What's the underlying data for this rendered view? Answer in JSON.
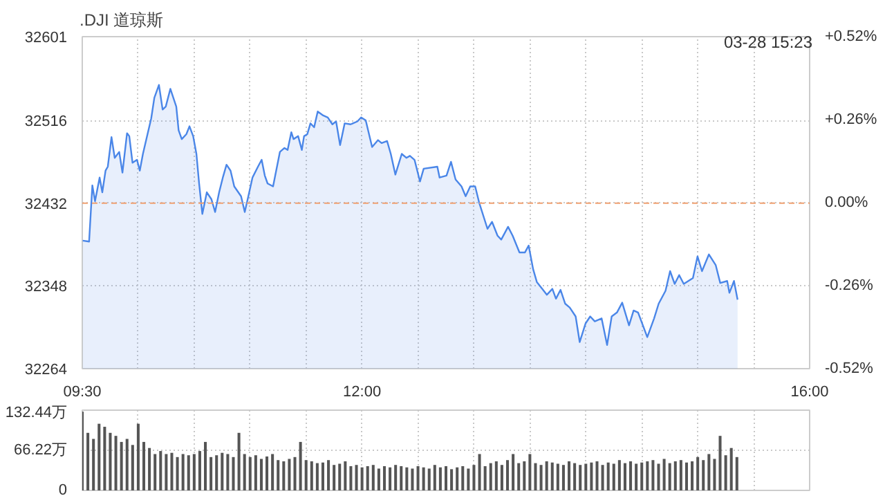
{
  "chart_data": [
    {
      "type": "area",
      "title": ".DJI 道琼斯",
      "annotations": [
        "03-28 15:23"
      ],
      "color": "#4a86e8",
      "grid": true,
      "x": [
        9.504,
        9.561,
        9.59,
        9.614,
        9.655,
        9.679,
        9.708,
        9.728,
        9.761,
        9.79,
        9.83,
        9.859,
        9.9,
        9.92,
        9.949,
        9.989,
        10.014,
        10.042,
        10.083,
        10.116,
        10.144,
        10.185,
        10.218,
        10.246,
        10.287,
        10.34,
        10.361,
        10.389,
        10.43,
        10.458,
        10.491,
        10.52,
        10.544,
        10.573,
        10.613,
        10.654,
        10.687,
        10.723,
        10.756,
        10.789,
        10.825,
        10.858,
        10.919,
        10.952,
        10.984,
        11.021,
        11.07,
        11.103,
        11.131,
        11.156,
        11.205,
        11.266,
        11.307,
        11.335,
        11.368,
        11.388,
        11.429,
        11.462,
        11.482,
        11.511,
        11.539,
        11.572,
        11.604,
        11.653,
        11.694,
        11.735,
        11.768,
        11.804,
        11.845,
        11.898,
        11.959,
        11.992,
        12.033,
        12.09,
        12.143,
        12.175,
        12.224,
        12.257,
        12.298,
        12.355,
        12.396,
        12.428,
        12.469,
        12.518,
        12.551,
        12.673,
        12.693,
        12.755,
        12.795,
        12.836,
        12.889,
        12.926,
        12.967,
        13.011,
        13.048,
        13.121,
        13.162,
        13.211,
        13.244,
        13.305,
        13.346,
        13.407,
        13.456,
        13.489,
        13.529,
        13.562,
        13.611,
        13.652,
        13.701,
        13.733,
        13.774,
        13.815,
        13.856,
        13.909,
        13.945,
        13.998,
        14.039,
        14.08,
        14.141,
        14.19,
        14.231,
        14.278,
        14.325,
        14.386,
        14.427,
        14.467,
        14.549,
        14.61,
        14.651,
        14.712,
        14.753,
        14.794,
        14.834,
        14.875,
        14.957,
        14.998,
        15.038,
        15.1,
        15.161,
        15.201,
        15.263,
        15.283,
        15.324,
        15.356
      ],
      "values": [
        32394,
        32393,
        32450,
        32434,
        32458,
        32443,
        32465,
        32469,
        32499,
        32478,
        32484,
        32463,
        32503,
        32500,
        32473,
        32476,
        32465,
        32482,
        32502,
        32518,
        32539,
        32552,
        32527,
        32530,
        32548,
        32530,
        32506,
        32497,
        32502,
        32510,
        32500,
        32482,
        32452,
        32421,
        32443,
        32436,
        32423,
        32443,
        32458,
        32471,
        32465,
        32449,
        32439,
        32423,
        32439,
        32458,
        32469,
        32476,
        32460,
        32452,
        32449,
        32484,
        32488,
        32486,
        32504,
        32497,
        32500,
        32486,
        32500,
        32502,
        32513,
        32509,
        32525,
        32521,
        32519,
        32512,
        32515,
        32491,
        32513,
        32512,
        32515,
        32519,
        32516,
        32489,
        32496,
        32493,
        32495,
        32482,
        32461,
        32482,
        32478,
        32480,
        32476,
        32454,
        32467,
        32469,
        32458,
        32460,
        32474,
        32456,
        32449,
        32439,
        32449,
        32449,
        32432,
        32406,
        32413,
        32399,
        32395,
        32408,
        32399,
        32382,
        32382,
        32389,
        32365,
        32352,
        32345,
        32339,
        32345,
        32335,
        32344,
        32330,
        32326,
        32317,
        32291,
        32310,
        32317,
        32312,
        32315,
        32288,
        32317,
        32321,
        32331,
        32308,
        32323,
        32321,
        32296,
        32315,
        32330,
        32343,
        32363,
        32350,
        32359,
        32350,
        32356,
        32378,
        32363,
        32380,
        32369,
        32351,
        32353,
        32341,
        32353,
        32334
      ],
      "xlim": [
        9.5,
        16
      ],
      "xticks": [
        {
          "value": 9.5,
          "label": "09:30"
        },
        {
          "value": 10,
          "label": null
        },
        {
          "value": 10.5,
          "label": null
        },
        {
          "value": 11,
          "label": null
        },
        {
          "value": 11.5,
          "label": null
        },
        {
          "value": 12,
          "label": "12:00"
        },
        {
          "value": 12.5,
          "label": null
        },
        {
          "value": 13,
          "label": null
        },
        {
          "value": 13.5,
          "label": null
        },
        {
          "value": 14,
          "label": null
        },
        {
          "value": 14.5,
          "label": null
        },
        {
          "value": 15,
          "label": null
        },
        {
          "value": 15.5,
          "label": null
        },
        {
          "value": 16,
          "label": "16:00"
        }
      ],
      "ylim": [
        32264,
        32601
      ],
      "yticks": [
        32264,
        32348,
        32432,
        32516,
        32601
      ],
      "y2lim": [
        -0.52,
        0.52
      ],
      "y2ticks": [
        {
          "value": -0.52,
          "label": "-0.52%"
        },
        {
          "value": -0.26,
          "label": "-0.26%"
        },
        {
          "value": 0,
          "label": "0.00%"
        },
        {
          "value": 0.26,
          "label": "+0.26%"
        },
        {
          "value": 0.52,
          "label": "+0.52%"
        }
      ],
      "ref_lines": [
        {
          "axis": "y",
          "value": 32432,
          "color": "#f0a070",
          "line_style": "dashed"
        }
      ]
    },
    {
      "type": "bar",
      "color": "#555555",
      "grid": true,
      "tick_labels": "y",
      "x": [
        9.5,
        9.55,
        9.6,
        9.65,
        9.7,
        9.75,
        9.8,
        9.85,
        9.9,
        9.95,
        10.0,
        10.05,
        10.1,
        10.15,
        10.2,
        10.25,
        10.3,
        10.35,
        10.4,
        10.45,
        10.5,
        10.55,
        10.6,
        10.65,
        10.7,
        10.75,
        10.8,
        10.85,
        10.9,
        10.95,
        11.0,
        11.05,
        11.1,
        11.15,
        11.2,
        11.25,
        11.3,
        11.35,
        11.4,
        11.45,
        11.5,
        11.55,
        11.6,
        11.65,
        11.7,
        11.75,
        11.8,
        11.85,
        11.9,
        11.95,
        12.0,
        12.05,
        12.1,
        12.15,
        12.2,
        12.25,
        12.3,
        12.35,
        12.4,
        12.45,
        12.5,
        12.55,
        12.6,
        12.65,
        12.7,
        12.75,
        12.8,
        12.85,
        12.9,
        12.95,
        13.0,
        13.05,
        13.1,
        13.15,
        13.2,
        13.25,
        13.3,
        13.35,
        13.4,
        13.45,
        13.5,
        13.55,
        13.6,
        13.65,
        13.7,
        13.75,
        13.8,
        13.85,
        13.9,
        13.95,
        14.0,
        14.05,
        14.1,
        14.15,
        14.2,
        14.25,
        14.3,
        14.35,
        14.4,
        14.45,
        14.5,
        14.55,
        14.6,
        14.65,
        14.7,
        14.75,
        14.8,
        14.85,
        14.9,
        14.95,
        15.0,
        15.05,
        15.1,
        15.15,
        15.2,
        15.25,
        15.3,
        15.35
      ],
      "values": [
        130,
        95,
        85,
        110,
        105,
        95,
        90,
        80,
        85,
        75,
        110,
        80,
        70,
        60,
        65,
        60,
        62,
        55,
        60,
        58,
        60,
        65,
        80,
        55,
        58,
        62,
        60,
        55,
        95,
        60,
        55,
        58,
        52,
        56,
        60,
        50,
        48,
        52,
        55,
        80,
        50,
        48,
        45,
        46,
        50,
        42,
        44,
        48,
        40,
        42,
        38,
        40,
        42,
        36,
        40,
        38,
        42,
        40,
        38,
        36,
        40,
        38,
        36,
        42,
        38,
        40,
        35,
        38,
        40,
        36,
        42,
        60,
        40,
        45,
        48,
        42,
        50,
        60,
        45,
        48,
        60,
        45,
        42,
        48,
        46,
        44,
        42,
        48,
        45,
        42,
        44,
        46,
        48,
        42,
        46,
        44,
        50,
        45,
        48,
        44,
        46,
        48,
        50,
        44,
        52,
        45,
        48,
        50,
        46,
        48,
        55,
        50,
        60,
        52,
        90,
        58,
        70,
        55
      ],
      "xlim": [
        9.5,
        16
      ],
      "xticks": [
        {
          "value": 9.5,
          "label": null
        },
        {
          "value": 10,
          "label": null
        },
        {
          "value": 10.5,
          "label": null
        },
        {
          "value": 11,
          "label": null
        },
        {
          "value": 11.5,
          "label": null
        },
        {
          "value": 12,
          "label": null
        },
        {
          "value": 12.5,
          "label": null
        },
        {
          "value": 13,
          "label": null
        },
        {
          "value": 13.5,
          "label": null
        },
        {
          "value": 14,
          "label": null
        },
        {
          "value": 14.5,
          "label": null
        },
        {
          "value": 15,
          "label": null
        },
        {
          "value": 15.5,
          "label": null
        },
        {
          "value": 16,
          "label": null
        }
      ],
      "ylim": [
        0,
        132.44
      ],
      "yticks": [
        0,
        {
          "value": 66.22,
          "label": "66.22万"
        },
        {
          "value": 132.44,
          "label": "132.44万"
        }
      ]
    }
  ]
}
